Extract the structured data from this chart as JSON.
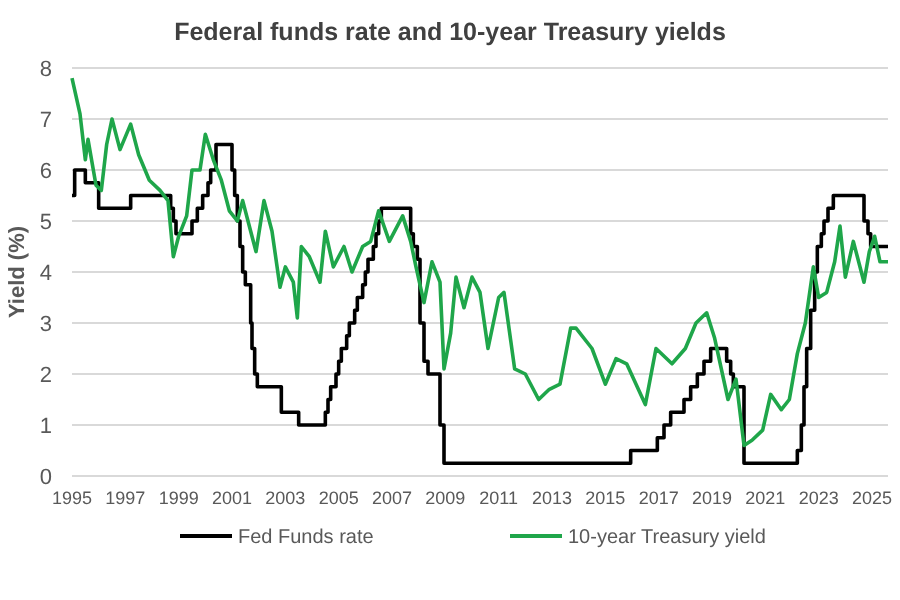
{
  "chart_data": {
    "type": "line",
    "title": "Federal funds rate and 10-year Treasury yields",
    "ylabel": "Yield (%)",
    "xlim": [
      1995,
      2025.6
    ],
    "xticks": [
      1995,
      1997,
      1999,
      2001,
      2003,
      2005,
      2007,
      2009,
      2011,
      2013,
      2015,
      2017,
      2019,
      2021,
      2023,
      2025
    ],
    "ylim": [
      0,
      8
    ],
    "yticks": [
      0,
      1,
      2,
      3,
      4,
      5,
      6,
      7,
      8
    ],
    "grid": "y",
    "legend": "bottom",
    "series": [
      {
        "name": "Fed Funds rate",
        "type": "step",
        "color": "#000000",
        "x": [
          1995.0,
          1995.1,
          1995.5,
          1996.0,
          1997.2,
          1998.7,
          1998.8,
          1998.9,
          1999.5,
          1999.7,
          1999.9,
          2000.1,
          2000.2,
          2000.4,
          2001.0,
          2001.1,
          2001.2,
          2001.3,
          2001.4,
          2001.5,
          2001.7,
          2001.75,
          2001.85,
          2001.95,
          2002.85,
          2003.5,
          2004.5,
          2004.6,
          2004.7,
          2004.9,
          2005.0,
          2005.1,
          2005.3,
          2005.4,
          2005.6,
          2005.7,
          2005.9,
          2006.0,
          2006.1,
          2006.3,
          2006.4,
          2006.5,
          2006.6,
          2007.7,
          2007.8,
          2007.95,
          2008.05,
          2008.2,
          2008.35,
          2008.8,
          2008.95,
          2015.95,
          2016.95,
          2017.2,
          2017.45,
          2017.95,
          2018.2,
          2018.45,
          2018.7,
          2018.95,
          2019.55,
          2019.7,
          2019.8,
          2020.2,
          2022.2,
          2022.35,
          2022.45,
          2022.55,
          2022.7,
          2022.85,
          2022.95,
          2023.1,
          2023.2,
          2023.35,
          2023.55,
          2024.7,
          2024.85,
          2024.95,
          2025.6
        ],
        "values": [
          5.5,
          6.0,
          5.75,
          5.25,
          5.5,
          5.25,
          5.0,
          4.75,
          5.0,
          5.25,
          5.5,
          5.75,
          6.0,
          6.5,
          6.0,
          5.5,
          5.0,
          4.5,
          4.0,
          3.75,
          3.0,
          2.5,
          2.0,
          1.75,
          1.25,
          1.0,
          1.25,
          1.5,
          1.75,
          2.0,
          2.25,
          2.5,
          2.75,
          3.0,
          3.25,
          3.5,
          3.75,
          4.0,
          4.25,
          4.5,
          4.75,
          5.0,
          5.25,
          4.75,
          4.5,
          4.25,
          3.0,
          2.25,
          2.0,
          1.0,
          0.25,
          0.5,
          0.75,
          1.0,
          1.25,
          1.5,
          1.75,
          2.0,
          2.25,
          2.5,
          2.25,
          2.0,
          1.75,
          0.25,
          0.5,
          1.0,
          1.75,
          2.5,
          3.25,
          4.0,
          4.5,
          4.75,
          5.0,
          5.25,
          5.5,
          5.0,
          4.75,
          4.5,
          4.5
        ]
      },
      {
        "name": "10-year Treasury yield",
        "color": "#1fa64a",
        "x": [
          1995.0,
          1995.3,
          1995.5,
          1995.6,
          1995.9,
          1996.1,
          1996.3,
          1996.5,
          1996.8,
          1997.2,
          1997.5,
          1997.9,
          1998.3,
          1998.6,
          1998.8,
          1999.0,
          1999.3,
          1999.5,
          1999.8,
          2000.0,
          2000.3,
          2000.6,
          2000.9,
          2001.2,
          2001.4,
          2001.7,
          2001.9,
          2002.2,
          2002.5,
          2002.8,
          2003.0,
          2003.3,
          2003.45,
          2003.6,
          2003.9,
          2004.3,
          2004.5,
          2004.8,
          2005.2,
          2005.5,
          2005.9,
          2006.2,
          2006.5,
          2006.9,
          2007.4,
          2007.7,
          2007.9,
          2008.2,
          2008.5,
          2008.8,
          2008.95,
          2009.2,
          2009.4,
          2009.7,
          2010.0,
          2010.3,
          2010.6,
          2011.0,
          2011.2,
          2011.6,
          2012.0,
          2012.5,
          2012.9,
          2013.3,
          2013.7,
          2013.9,
          2014.5,
          2015.0,
          2015.4,
          2015.8,
          2016.5,
          2016.9,
          2017.5,
          2018.0,
          2018.4,
          2018.8,
          2019.1,
          2019.6,
          2019.9,
          2020.2,
          2020.5,
          2020.9,
          2021.2,
          2021.6,
          2021.9,
          2022.2,
          2022.5,
          2022.8,
          2023.0,
          2023.3,
          2023.6,
          2023.8,
          2024.0,
          2024.3,
          2024.7,
          2024.9,
          2025.1,
          2025.3,
          2025.6
        ],
        "values": [
          7.8,
          7.1,
          6.2,
          6.6,
          5.7,
          5.6,
          6.5,
          7.0,
          6.4,
          6.9,
          6.3,
          5.8,
          5.6,
          5.4,
          4.3,
          4.7,
          5.1,
          6.0,
          6.0,
          6.7,
          6.2,
          5.8,
          5.2,
          5.0,
          5.4,
          4.8,
          4.4,
          5.4,
          4.8,
          3.7,
          4.1,
          3.8,
          3.1,
          4.5,
          4.3,
          3.8,
          4.8,
          4.1,
          4.5,
          4.0,
          4.5,
          4.6,
          5.2,
          4.6,
          5.1,
          4.6,
          4.1,
          3.4,
          4.2,
          3.8,
          2.1,
          2.8,
          3.9,
          3.3,
          3.9,
          3.6,
          2.5,
          3.5,
          3.6,
          2.1,
          2.0,
          1.5,
          1.7,
          1.8,
          2.9,
          2.9,
          2.5,
          1.8,
          2.3,
          2.2,
          1.4,
          2.5,
          2.2,
          2.5,
          3.0,
          3.2,
          2.7,
          1.5,
          1.9,
          0.6,
          0.7,
          0.9,
          1.6,
          1.3,
          1.5,
          2.4,
          3.0,
          4.1,
          3.5,
          3.6,
          4.2,
          4.9,
          3.9,
          4.6,
          3.8,
          4.4,
          4.7,
          4.2,
          4.2
        ]
      }
    ]
  }
}
